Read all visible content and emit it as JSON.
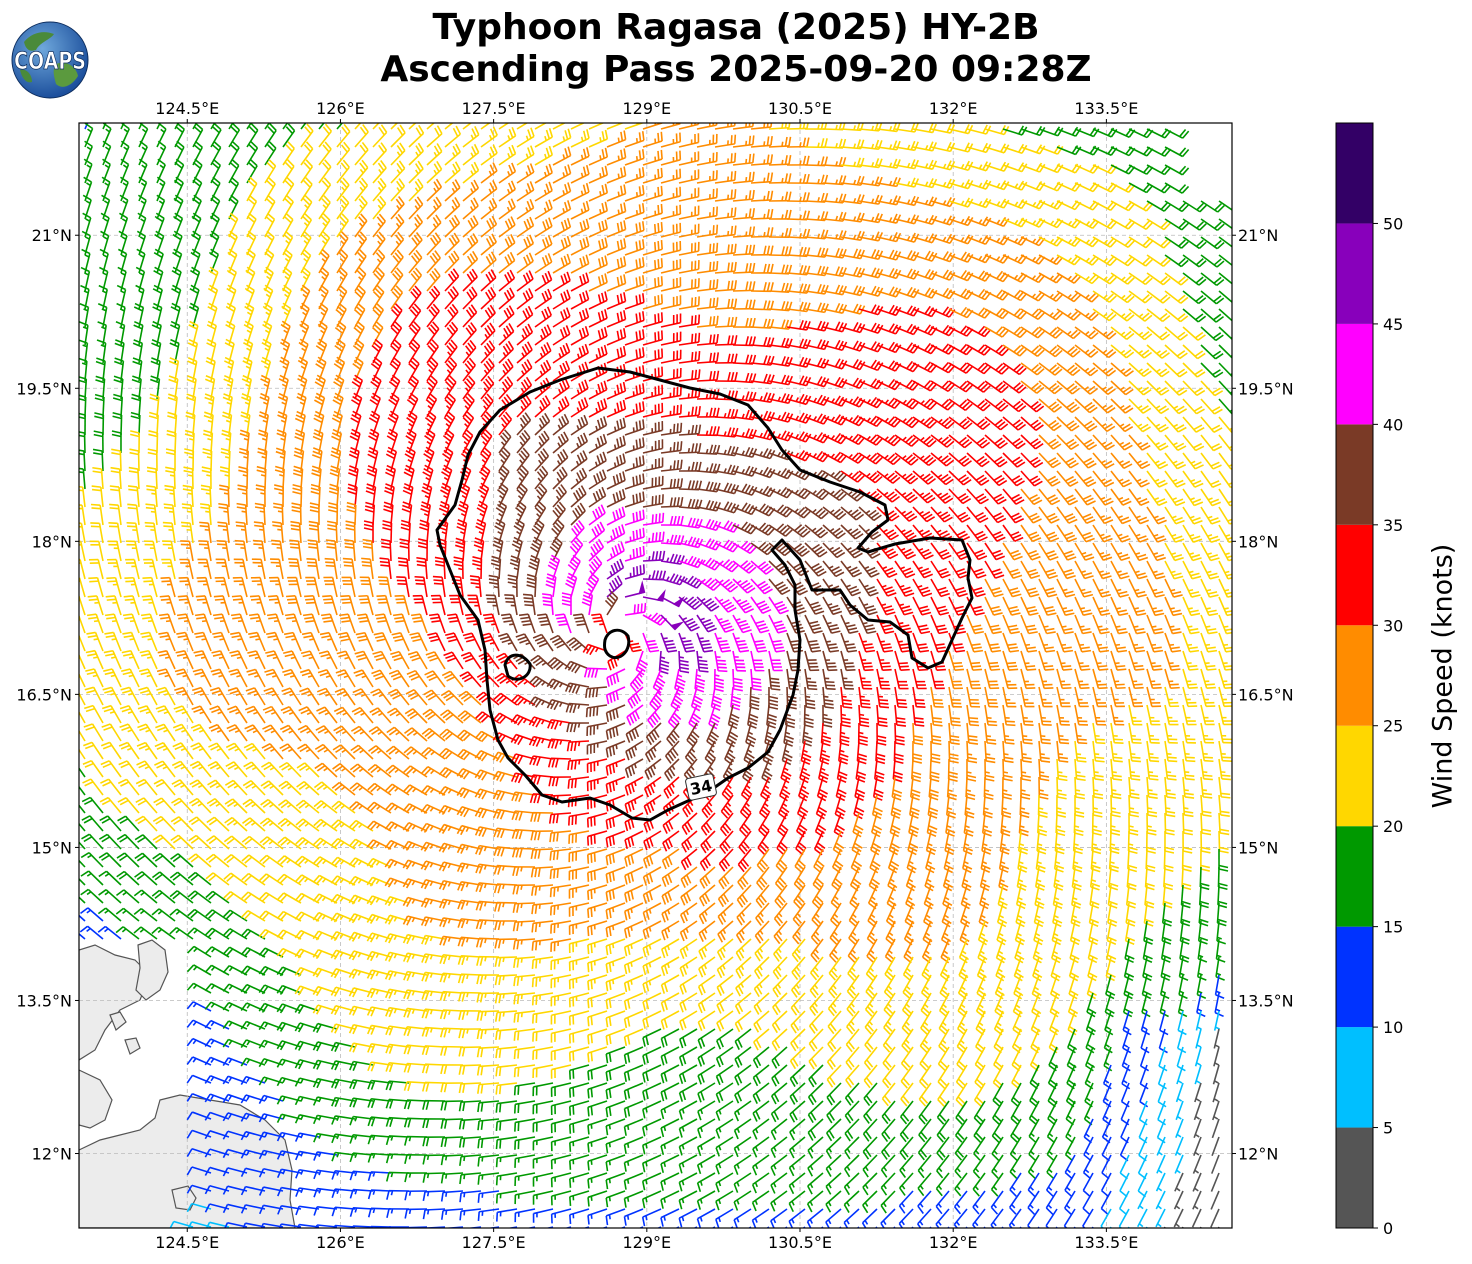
{
  "title_line1": "Typhoon Ragasa (2025) HY-2B",
  "title_line2": "Ascending Pass 2025-09-20 09:28Z",
  "logo_text": "COAPS",
  "map": {
    "lon_ticks": [
      {
        "value": 124.5,
        "label": "124.5°E"
      },
      {
        "value": 126.0,
        "label": "126°E"
      },
      {
        "value": 127.5,
        "label": "127.5°E"
      },
      {
        "value": 129.0,
        "label": "129°E"
      },
      {
        "value": 130.5,
        "label": "130.5°E"
      },
      {
        "value": 132.0,
        "label": "132°E"
      },
      {
        "value": 133.5,
        "label": "133.5°E"
      }
    ],
    "lat_ticks": [
      {
        "value": 21.0,
        "label": "21°N"
      },
      {
        "value": 19.5,
        "label": "19.5°N"
      },
      {
        "value": 18.0,
        "label": "18°N"
      },
      {
        "value": 16.5,
        "label": "16.5°N"
      },
      {
        "value": 15.0,
        "label": "15°N"
      },
      {
        "value": 13.5,
        "label": "13.5°N"
      },
      {
        "value": 12.0,
        "label": "12°N"
      }
    ],
    "extent": {
      "lon_min": 123.44,
      "lon_max": 134.73,
      "lat_min": 11.27,
      "lat_max": 22.1
    },
    "storm_center": {
      "lon": 128.75,
      "lat": 17.1
    },
    "contour_label": "34",
    "gridlines": true,
    "land_color": "#ececec"
  },
  "colorbar": {
    "label": "Wind Speed (knots)",
    "bins": [
      {
        "min": 0,
        "max": 5,
        "color": "#555555"
      },
      {
        "min": 5,
        "max": 10,
        "color": "#00bfff"
      },
      {
        "min": 10,
        "max": 15,
        "color": "#0033ff"
      },
      {
        "min": 15,
        "max": 20,
        "color": "#009900"
      },
      {
        "min": 20,
        "max": 25,
        "color": "#ffd700"
      },
      {
        "min": 25,
        "max": 30,
        "color": "#ff8c00"
      },
      {
        "min": 30,
        "max": 35,
        "color": "#ff0000"
      },
      {
        "min": 35,
        "max": 40,
        "color": "#7a3a26"
      },
      {
        "min": 40,
        "max": 45,
        "color": "#ff00ff"
      },
      {
        "min": 45,
        "max": 50,
        "color": "#8800bb"
      },
      {
        "min": 50,
        "max": 55,
        "color": "#330066"
      }
    ],
    "tick_labels": [
      "0",
      "5",
      "10",
      "15",
      "20",
      "25",
      "30",
      "35",
      "40",
      "45",
      "50"
    ]
  }
}
